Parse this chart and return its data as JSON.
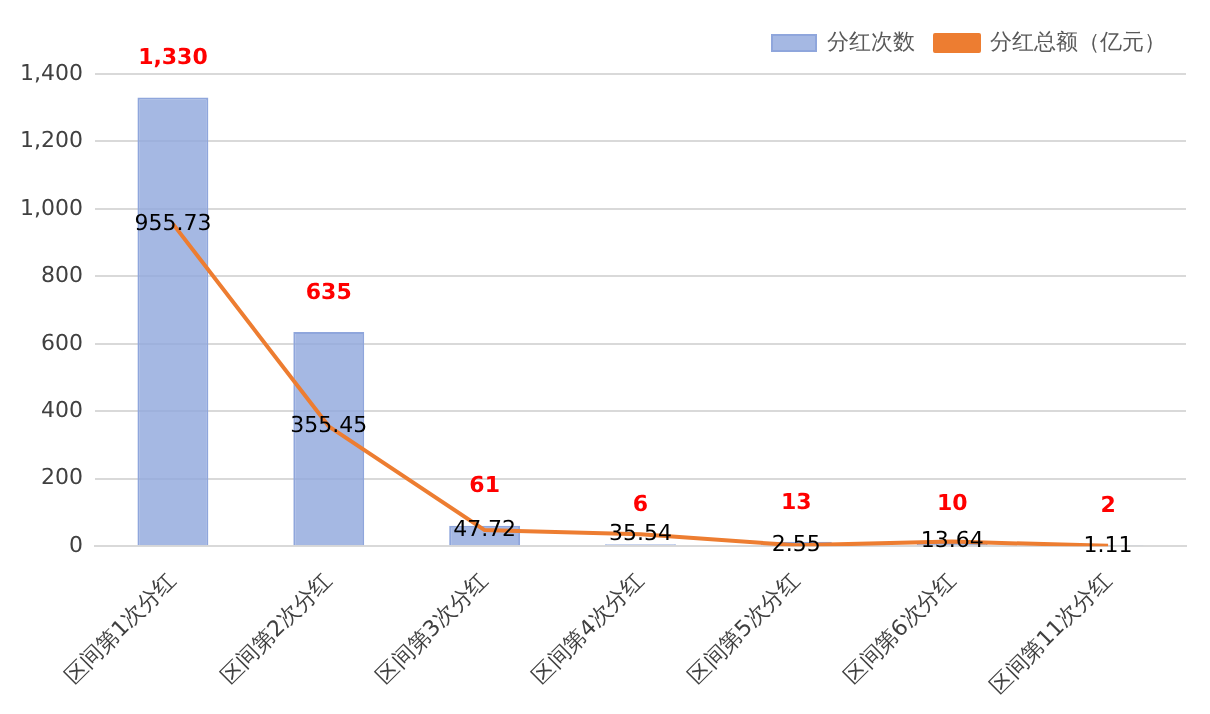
{
  "chart_data": {
    "type": "bar",
    "categories": [
      "区间第1次分红",
      "区间第2次分红",
      "区间第3次分红",
      "区间第4次分红",
      "区间第5次分红",
      "区间第6次分红",
      "区间第11次分红"
    ],
    "series": [
      {
        "name": "分红次数",
        "color": "#8fa6dc",
        "values": [
          1330,
          635,
          61,
          6,
          13,
          10,
          2
        ],
        "value_labels": [
          "1,330",
          "635",
          "61",
          "6",
          "13",
          "10",
          "2"
        ]
      },
      {
        "name": "分红总额（亿元）",
        "type": "line",
        "color": "#ed7d31",
        "values": [
          955.73,
          355.45,
          47.72,
          35.54,
          2.55,
          13.64,
          1.11
        ],
        "value_labels": [
          "955.73",
          "355.45",
          "47.72",
          "35.54",
          "2.55",
          "13.64",
          "1.11"
        ]
      }
    ],
    "ylim": [
      0,
      1400
    ],
    "yticks": [
      0,
      200,
      400,
      600,
      800,
      {
        "value": 1000,
        "label": "1,000"
      },
      {
        "value": 1200,
        "label": "1,200"
      },
      {
        "value": 1400,
        "label": "1,400"
      }
    ],
    "grid": "y",
    "legend": "top right",
    "marker": "none"
  }
}
